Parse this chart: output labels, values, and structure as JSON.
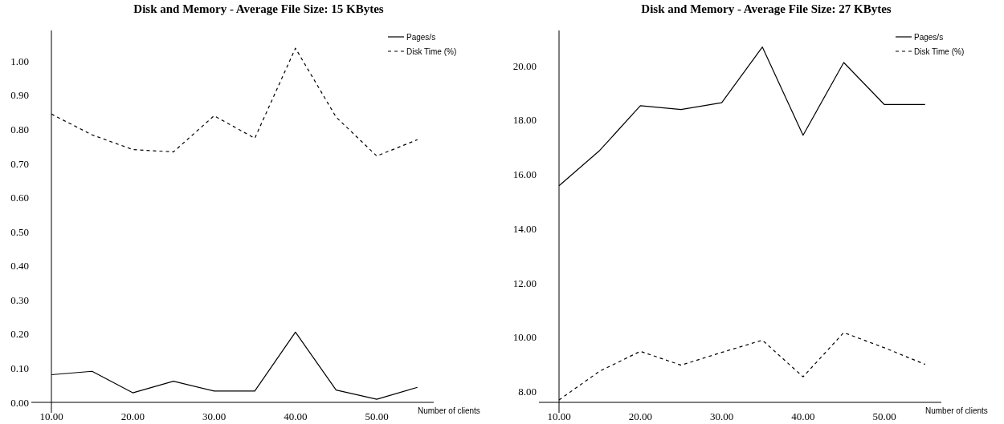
{
  "chart_data": [
    {
      "type": "line",
      "title": "Disk and Memory -  Average File Size: 15 KBytes",
      "xlabel": "Number of clients",
      "x": [
        10,
        15,
        20,
        25,
        30,
        35,
        40,
        45,
        50,
        55
      ],
      "xlim": [
        10,
        57
      ],
      "xticks": [
        {
          "value": 10,
          "label": "10.00"
        },
        {
          "value": 20,
          "label": "20.00"
        },
        {
          "value": 30,
          "label": "30.00"
        },
        {
          "value": 40,
          "label": "40.00"
        },
        {
          "value": 50,
          "label": "50.00"
        }
      ],
      "ylim": [
        0,
        1.09
      ],
      "yticks": [
        {
          "value": 0,
          "label": "0.00"
        },
        {
          "value": 0.1,
          "label": "0.10"
        },
        {
          "value": 0.2,
          "label": "0.20"
        },
        {
          "value": 0.3,
          "label": "0.30"
        },
        {
          "value": 0.4,
          "label": "0.40"
        },
        {
          "value": 0.5,
          "label": "0.50"
        },
        {
          "value": 0.6,
          "label": "0.60"
        },
        {
          "value": 0.7,
          "label": "0.70"
        },
        {
          "value": 0.8,
          "label": "0.80"
        },
        {
          "value": 0.9,
          "label": "0.90"
        },
        {
          "value": 1.0,
          "label": "1.00"
        }
      ],
      "legend": "top right",
      "grid": false,
      "series": [
        {
          "name": "Pages/s",
          "color": "#000000",
          "line_style": "solid",
          "values": [
            0.081,
            0.091,
            0.028,
            0.062,
            0.033,
            0.033,
            0.206,
            0.036,
            0.009,
            0.044
          ]
        },
        {
          "name": "Disk Time (%)",
          "color": "#000000",
          "line_style": "dashed",
          "values": [
            0.845,
            0.784,
            0.741,
            0.734,
            0.84,
            0.774,
            1.038,
            0.836,
            0.722,
            0.77
          ]
        }
      ]
    },
    {
      "type": "line",
      "title": "Disk and Memory - Average File Size: 27 KBytes",
      "xlabel": "Number of clients",
      "x": [
        10,
        15,
        20,
        25,
        30,
        35,
        40,
        45,
        50,
        55
      ],
      "xlim": [
        10,
        57
      ],
      "xticks": [
        {
          "value": 10,
          "label": "10.00"
        },
        {
          "value": 20,
          "label": "20.00"
        },
        {
          "value": 30,
          "label": "30.00"
        },
        {
          "value": 40,
          "label": "40.00"
        },
        {
          "value": 50,
          "label": "50.00"
        }
      ],
      "ylim": [
        7.6,
        21.3
      ],
      "yticks": [
        {
          "value": 8,
          "label": "8.00"
        },
        {
          "value": 10,
          "label": "10.00"
        },
        {
          "value": 12,
          "label": "12.00"
        },
        {
          "value": 14,
          "label": "14.00"
        },
        {
          "value": 16,
          "label": "16.00"
        },
        {
          "value": 18,
          "label": "18.00"
        },
        {
          "value": 20,
          "label": "20.00"
        }
      ],
      "legend": "top right",
      "grid": false,
      "series": [
        {
          "name": "Pages/s",
          "color": "#000000",
          "line_style": "solid",
          "values": [
            15.58,
            16.88,
            18.53,
            18.39,
            18.64,
            20.69,
            17.44,
            20.12,
            18.57,
            18.57
          ]
        },
        {
          "name": "Disk Time (%)",
          "color": "#000000",
          "line_style": "dashed",
          "values": [
            7.69,
            8.75,
            9.48,
            8.97,
            9.44,
            9.89,
            8.54,
            10.17,
            9.61,
            9.0
          ]
        }
      ]
    }
  ]
}
